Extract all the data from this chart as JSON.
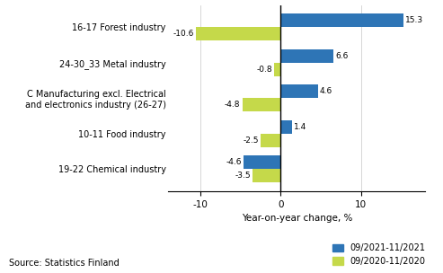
{
  "categories": [
    "19-22 Chemical industry",
    "10-11 Food industry",
    "C Manufacturing excl. Electrical\nand electronics industry (26-27)",
    "24-30_33 Metal industry",
    "16-17 Forest industry"
  ],
  "series_2021": [
    -4.6,
    1.4,
    4.6,
    6.6,
    15.3
  ],
  "series_2020": [
    -3.5,
    -2.5,
    -4.8,
    -0.8,
    -10.6
  ],
  "color_2021": "#2E75B6",
  "color_2020": "#C5D94A",
  "xlabel": "Year-on-year change, %",
  "legend_2021": "09/2021-11/2021",
  "legend_2020": "09/2020-11/2020",
  "source": "Source: Statistics Finland",
  "xlim": [
    -14,
    18
  ],
  "xticks": [
    -10,
    0,
    10
  ],
  "bar_height": 0.38
}
